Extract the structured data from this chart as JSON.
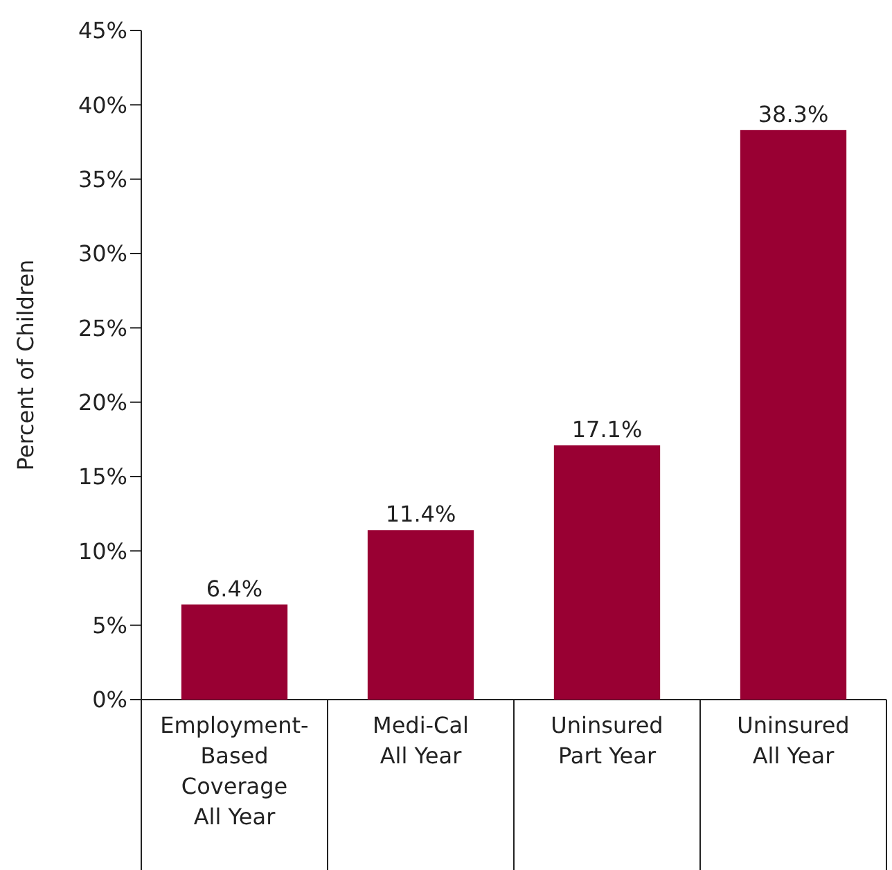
{
  "chart_data": {
    "type": "bar",
    "ylabel": "Percent of Children",
    "categories": [
      "Employment-\nBased\nCoverage\nAll Year",
      "Medi-Cal\nAll Year",
      "Uninsured\nPart Year",
      "Uninsured\nAll Year"
    ],
    "values": [
      6.4,
      11.4,
      17.1,
      38.3
    ],
    "value_labels": [
      "6.4%",
      "11.4%",
      "17.1%",
      "38.3%"
    ],
    "color": "#990033",
    "ylim": [
      0,
      45
    ],
    "yticks": [
      {
        "value": 0,
        "label": "0%"
      },
      {
        "value": 5,
        "label": "5%"
      },
      {
        "value": 10,
        "label": "10%"
      },
      {
        "value": 15,
        "label": "15%"
      },
      {
        "value": 20,
        "label": "20%"
      },
      {
        "value": 25,
        "label": "25%"
      },
      {
        "value": 30,
        "label": "30%"
      },
      {
        "value": 35,
        "label": "35%"
      },
      {
        "value": 40,
        "label": "40%"
      },
      {
        "value": 45,
        "label": "45%"
      }
    ],
    "grid": false
  }
}
